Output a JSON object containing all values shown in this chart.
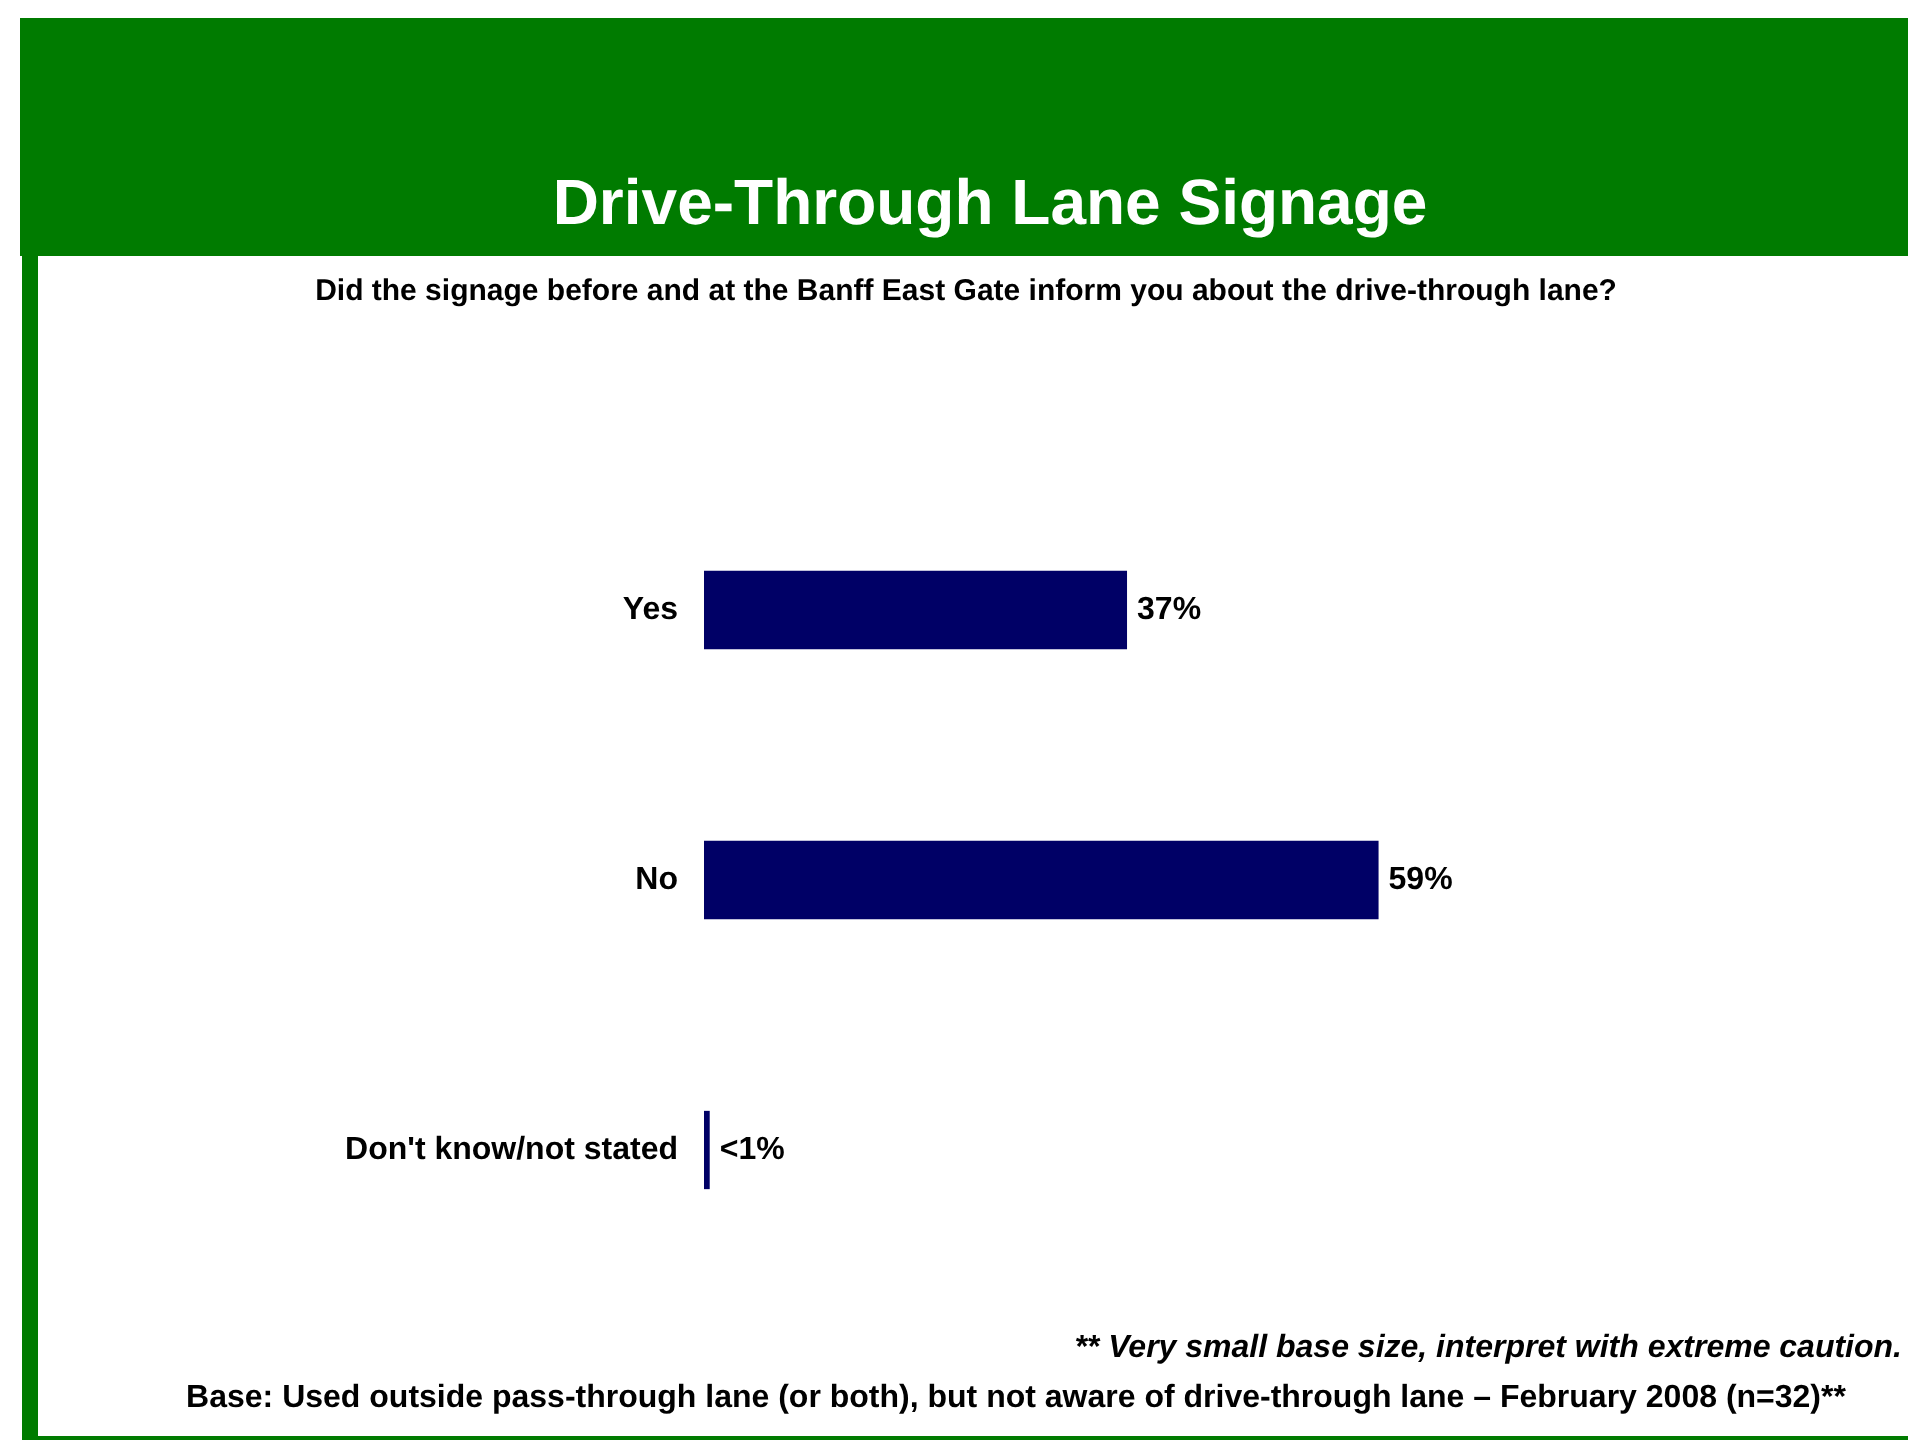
{
  "chart_data": {
    "type": "bar",
    "orientation": "horizontal",
    "title": "Drive-Through Lane Signage",
    "subtitle": "Did the signage before and at the Banff East Gate inform you about the drive-through lane?",
    "categories": [
      "Yes",
      "No",
      "Don't know/not stated"
    ],
    "values": [
      37,
      59,
      0.5
    ],
    "value_labels": [
      "37%",
      "59%",
      "<1%"
    ],
    "color": "#000066",
    "annotations": [
      "** Very small base size, interpret with extreme caution.",
      "Base: Used outside pass-through lane (or both), but not aware of drive-through lane – February 2008 (n=32)**"
    ]
  }
}
